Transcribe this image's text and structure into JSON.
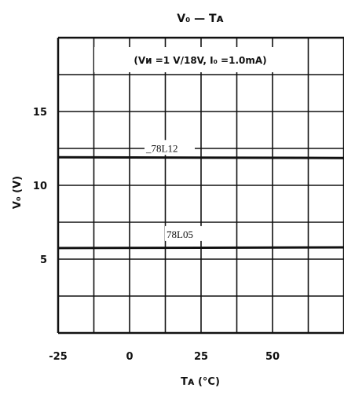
{
  "chart_data": {
    "type": "line",
    "title": "V₀ — Tᴀ",
    "condition": "(Vᴎ =1 V/18V, I₀ =1.0mA)",
    "xlabel": "Tᴀ (°C)",
    "ylabel": "V₀ (V)",
    "xlim": [
      -25,
      75
    ],
    "ylim": [
      0,
      20
    ],
    "x_ticks": [
      -25,
      0,
      25,
      50
    ],
    "x_tick_labels": [
      "-25",
      "0",
      "25",
      "50"
    ],
    "y_ticks": [
      5,
      10,
      15
    ],
    "y_tick_labels": [
      "5",
      "10",
      "15"
    ],
    "x_grid_step": 12.5,
    "y_grid_step": 2.5,
    "grid": true,
    "legend": "none",
    "series": [
      {
        "name": "78L12",
        "x": [
          -25,
          75
        ],
        "y": [
          11.9,
          11.85
        ]
      },
      {
        "name": "78L05",
        "x": [
          -25,
          75
        ],
        "y": [
          5.75,
          5.8
        ]
      }
    ],
    "series_labels": [
      "_78L12",
      "78L05"
    ]
  }
}
